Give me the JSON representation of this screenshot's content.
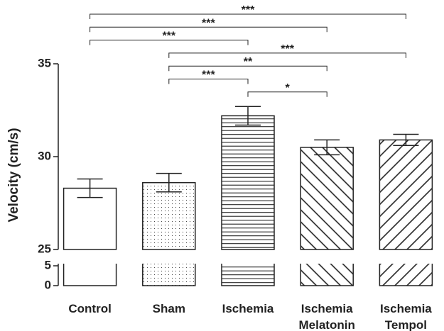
{
  "chart_data": {
    "type": "bar",
    "y_label": "Velocity (cm/s)",
    "categories": [
      "Control",
      "Sham",
      "Ischemia",
      "Ischemia Melatonin",
      "Ischemia Tempol"
    ],
    "values": [
      28.3,
      28.6,
      32.2,
      30.5,
      30.9
    ],
    "errors": [
      0.5,
      0.5,
      0.5,
      0.4,
      0.3
    ],
    "patterns": [
      "none",
      "dots",
      "horizontal",
      "diagonal-down",
      "diagonal-up"
    ],
    "color": "#222222",
    "ylim": [
      0,
      35
    ],
    "ybreak": [
      5,
      25
    ],
    "yticks": [
      0,
      5,
      25,
      30,
      35
    ],
    "comparisons": [
      {
        "from": "Control",
        "to": "Ischemia Tempol",
        "label": "***"
      },
      {
        "from": "Control",
        "to": "Ischemia Melatonin",
        "label": "***"
      },
      {
        "from": "Control",
        "to": "Ischemia",
        "label": "***"
      },
      {
        "from": "Sham",
        "to": "Ischemia Tempol",
        "label": "***"
      },
      {
        "from": "Sham",
        "to": "Ischemia Melatonin",
        "label": "**"
      },
      {
        "from": "Sham",
        "to": "Ischemia",
        "label": "***"
      },
      {
        "from": "Ischemia",
        "to": "Ischemia Melatonin",
        "label": "*"
      }
    ]
  }
}
